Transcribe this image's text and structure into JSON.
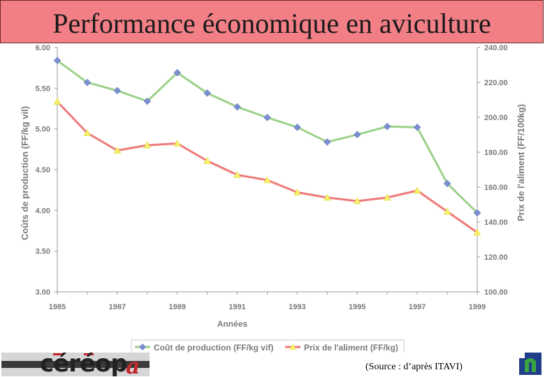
{
  "title": "Performance économique en aviculture",
  "source": "(Source : d’après ITAVI)",
  "logo_text": "céréopa",
  "chart_data": {
    "type": "line",
    "x": [
      1985,
      1986,
      1987,
      1988,
      1989,
      1990,
      1991,
      1992,
      1993,
      1994,
      1995,
      1996,
      1997,
      1998,
      1999
    ],
    "x_ticks": [
      "1985",
      "1987",
      "1989",
      "1991",
      "1993",
      "1995",
      "1997",
      "1999"
    ],
    "xlabel": "Années",
    "ylabel_left": "Coûts de production (FF/kg vil)",
    "ylabel_right": "Prix de l'aliment (FF/100kg)",
    "ylim_left": [
      3.0,
      6.0
    ],
    "ylim_right": [
      100,
      240
    ],
    "y_ticks_left": [
      "3.00",
      "3.50",
      "4.00",
      "4.50",
      "5.00",
      "5.50",
      "6.00"
    ],
    "y_ticks_right": [
      "100.00",
      "120.00",
      "140.00",
      "160.00",
      "180.00",
      "200.00",
      "220.00",
      "240.00"
    ],
    "legend_position": "bottom",
    "grid": false,
    "series": [
      {
        "name": "Coût de production (FF/kg vif)",
        "axis": "left",
        "color": "#7b8ed0",
        "line_color": "#9dd18a",
        "marker": "diamond",
        "values": [
          5.84,
          5.57,
          5.47,
          5.34,
          5.69,
          5.44,
          5.27,
          5.14,
          5.02,
          4.84,
          4.93,
          5.03,
          5.02,
          4.33,
          3.97
        ]
      },
      {
        "name": "Prix de l'aliment (FF/kg)",
        "axis": "right",
        "color": "#f5f06a",
        "line_color": "#ef7a7a",
        "marker": "triangle",
        "values": [
          209,
          191,
          181,
          184,
          185,
          175,
          167,
          164,
          157,
          154,
          152,
          154,
          158,
          146,
          134
        ]
      }
    ]
  }
}
